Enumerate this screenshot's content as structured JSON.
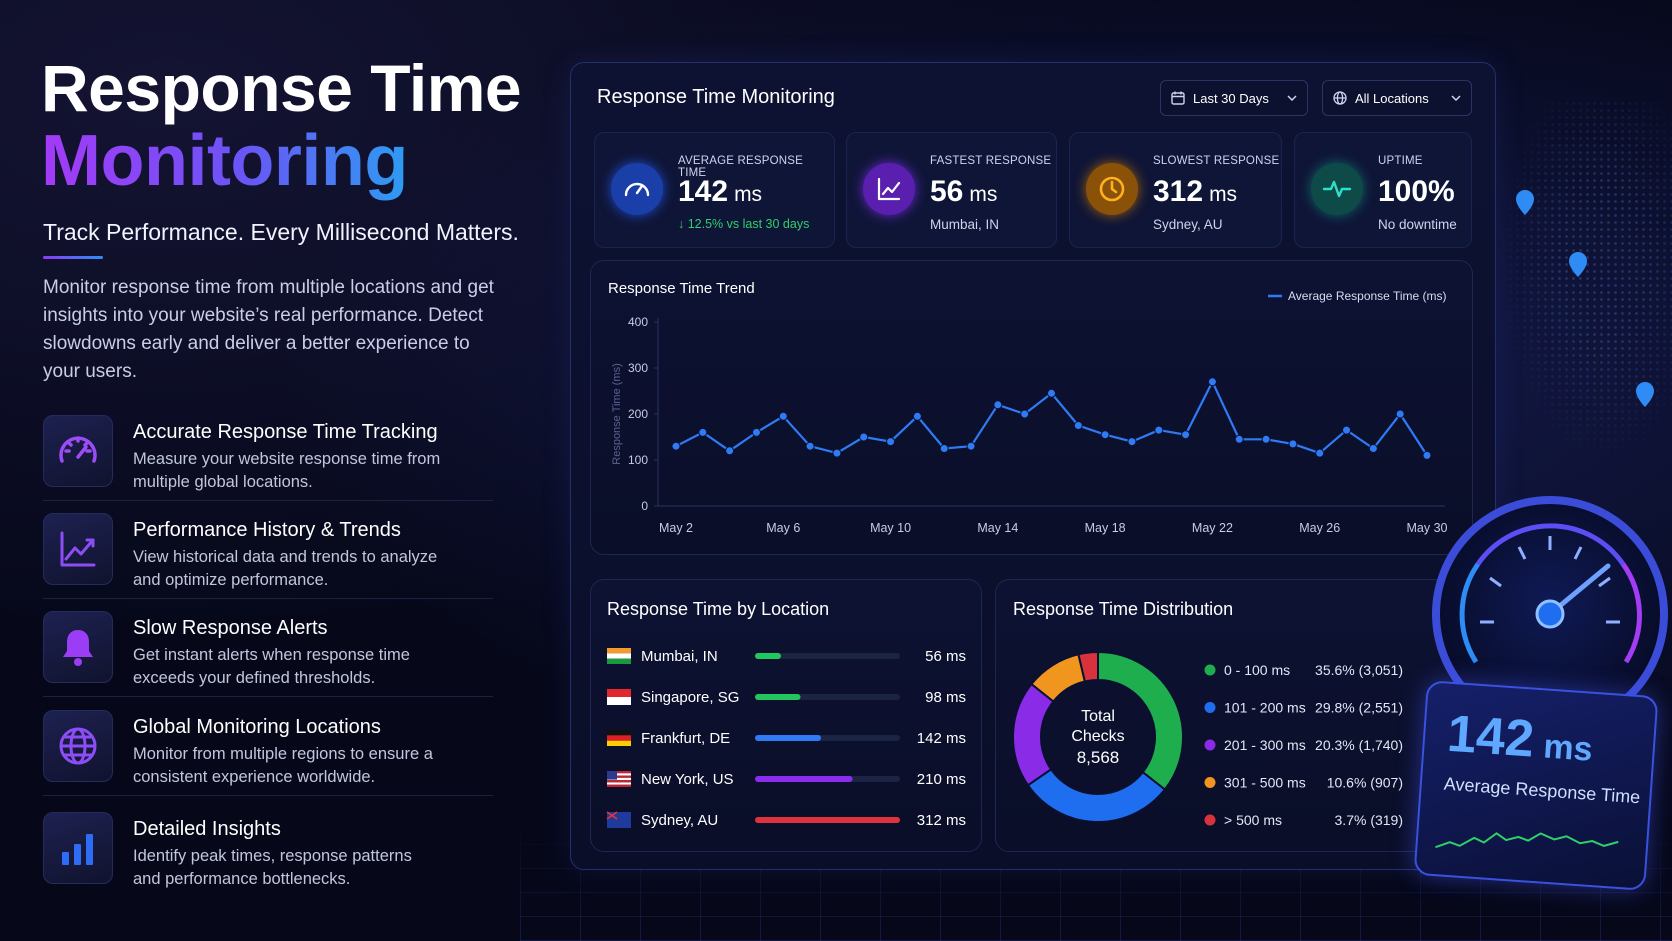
{
  "hero": {
    "title": "Response Time",
    "title_highlight": "Monitoring",
    "tagline": "Track Performance. Every Millisecond Matters.",
    "description": "Monitor response time from multiple locations and get insights into your website’s real performance. Detect slowdowns early and deliver a better experience to your users."
  },
  "features": [
    {
      "title": "Accurate Response Time Tracking",
      "description": "Measure your website response time from multiple global locations."
    },
    {
      "title": "Performance History & Trends",
      "description": "View historical data and trends to analyze and optimize performance."
    },
    {
      "title": "Slow Response Alerts",
      "description": "Get instant alerts when response time exceeds your defined thresholds."
    },
    {
      "title": "Global Monitoring Locations",
      "description": "Monitor from multiple regions to ensure a consistent experience worldwide."
    },
    {
      "title": "Detailed Insights",
      "description": "Identify peak times, response patterns and performance bottlenecks."
    }
  ],
  "dashboard": {
    "title": "Response Time Monitoring",
    "filters": [
      "Last 30 Days",
      "All Locations"
    ],
    "stats": [
      {
        "label": "AVERAGE RESPONSE TIME",
        "value": "142",
        "unit": "ms",
        "note": "↓ 12.5% vs last 30 days"
      },
      {
        "label": "FASTEST RESPONSE",
        "value": "56",
        "unit": "ms",
        "note": "Mumbai, IN"
      },
      {
        "label": "SLOWEST RESPONSE",
        "value": "312",
        "unit": "ms",
        "note": "Sydney, AU"
      },
      {
        "label": "UPTIME",
        "value": "100%",
        "note": "No downtime"
      }
    ]
  },
  "gauge": {
    "value": "142",
    "unit": "ms",
    "label": "Average Response Time"
  },
  "chart_data": [
    {
      "type": "line",
      "title": "Response Time Trend",
      "y_label": "Response Time (ms)",
      "categories": [
        "May 2",
        null,
        null,
        null,
        "May 6",
        null,
        null,
        null,
        "May 10",
        null,
        null,
        null,
        "May 14",
        null,
        null,
        null,
        "May 18",
        null,
        null,
        null,
        "May 22",
        null,
        null,
        null,
        "May 26",
        null,
        null,
        null,
        "May 30"
      ],
      "series": [
        {
          "name": "Average Response Time (ms)",
          "color": "#2f7bf5",
          "values": [
            130,
            160,
            120,
            160,
            195,
            130,
            115,
            150,
            140,
            195,
            125,
            130,
            220,
            200,
            245,
            175,
            155,
            140,
            165,
            155,
            270,
            145,
            145,
            135,
            115,
            165,
            125,
            200,
            110
          ]
        }
      ],
      "ylim": [
        0,
        400
      ],
      "yticks": [
        0,
        100,
        200,
        300,
        400
      ],
      "grid": false,
      "legend": "top-right"
    },
    {
      "type": "hbar",
      "title": "Response Time by Location",
      "categories": [
        "Mumbai, IN",
        "Singapore, SG",
        "Frankfurt, DE",
        "New York, US",
        "Sydney, AU"
      ],
      "values": [
        56,
        98,
        142,
        210,
        312
      ],
      "value_labels": [
        "56 ms",
        "98 ms",
        "142 ms",
        "210 ms",
        "312 ms"
      ],
      "colors": [
        "#22c55e",
        "#22c55e",
        "#2f7bf5",
        "#8b2cf0",
        "#e0323e"
      ]
    },
    {
      "type": "donut",
      "title": "Response Time Distribution",
      "center_label": "Total Checks",
      "center_value": "8,568",
      "categories": [
        "0 - 100 ms",
        "101 - 200 ms",
        "201 - 300 ms",
        "301 - 500 ms",
        "> 500 ms"
      ],
      "values": [
        35.6,
        29.8,
        20.3,
        10.6,
        3.7
      ],
      "value_labels": [
        "35.6% (3,051)",
        "29.8% (2,551)",
        "20.3% (1,740)",
        "10.6% (907)",
        "3.7% (319)"
      ],
      "colors": [
        "#1fae4e",
        "#1f6ef0",
        "#8a2be8",
        "#f0961e",
        "#d8323c"
      ]
    }
  ]
}
